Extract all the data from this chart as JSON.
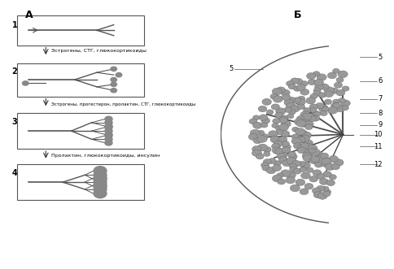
{
  "title_A": "А",
  "title_B": "Б",
  "label1": "1",
  "label2": "2",
  "label3": "3",
  "label4": "4",
  "label5": "5",
  "label6": "6",
  "label7": "7",
  "label8": "8",
  "label9": "9",
  "label10": "10",
  "label11": "11",
  "label12": "12",
  "text1": "Эстрогены, СТГ, глюкокортикоиды",
  "text2": "Эстрогены, прогестерон, пролактин, СТГ, глюкокортикоиды",
  "text3": "Пролактин, глюкокортикоиды, инсулин",
  "bg_color": "#f5f5f5",
  "box_color": "#ffffff",
  "line_color": "#333333",
  "gray_fill": "#aaaaaa",
  "dark_fill": "#555555"
}
